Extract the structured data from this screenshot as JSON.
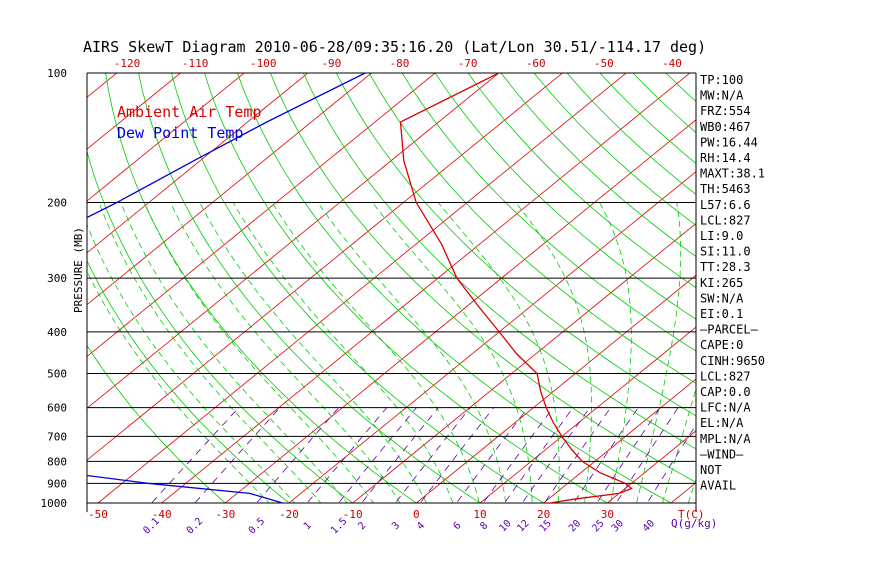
{
  "chart_data": {
    "type": "line",
    "title": "AIRS SkewT Diagram 2010-06-28/09:35:16.20 (Lat/Lon 30.51/-114.17 deg)",
    "ylabel": "PRESSURE (MB)",
    "y_scale": "log",
    "ylim": [
      1000,
      100
    ],
    "y_ticks": [
      100,
      200,
      300,
      400,
      500,
      600,
      700,
      800,
      900,
      1000
    ],
    "bottom_temp_ticks": [
      -50,
      -40,
      -30,
      -20,
      -10,
      0,
      10,
      20,
      30
    ],
    "bottom_temp_label": "T(C)",
    "top_temp_ticks": [
      -120,
      -110,
      -100,
      -90,
      -80,
      -70,
      -60,
      -50,
      -40
    ],
    "mixing_ratio_ticks": [
      "0.1",
      "0.2",
      "0.5",
      "1",
      "1.5",
      "2",
      "3",
      "4",
      "6",
      "8",
      "10",
      "12",
      "15",
      "20",
      "25",
      "30",
      "40"
    ],
    "mixing_ratio_label": "Q(g/kg)",
    "legend": {
      "position": "top-left",
      "entries": [
        "Ambient Air Temp",
        "Dew Point Temp"
      ]
    },
    "colors": {
      "temp": "#dd0000",
      "dew": "#0000dd",
      "isotherm": "#dd0000",
      "dry_adiabat": "#00cc00",
      "moist_adiabat": "#00cc00",
      "mixing_ratio": "#5a00aa",
      "isobar": "#000000"
    },
    "series": [
      {
        "name": "Ambient Air Temp",
        "points": [
          [
            100,
            -70
          ],
          [
            130,
            -76
          ],
          [
            160,
            -68
          ],
          [
            200,
            -58
          ],
          [
            250,
            -46
          ],
          [
            300,
            -37
          ],
          [
            350,
            -28
          ],
          [
            400,
            -20
          ],
          [
            450,
            -13
          ],
          [
            500,
            -6
          ],
          [
            550,
            -2
          ],
          [
            600,
            2
          ],
          [
            650,
            6
          ],
          [
            700,
            10
          ],
          [
            750,
            14
          ],
          [
            800,
            18
          ],
          [
            850,
            23
          ],
          [
            900,
            29
          ],
          [
            925,
            31
          ],
          [
            950,
            30
          ],
          [
            980,
            24
          ],
          [
            1000,
            21
          ]
        ]
      },
      {
        "name": "Dew Point Temp",
        "points": [
          [
            100,
            -91
          ],
          [
            130,
            -97
          ],
          [
            160,
            -101
          ],
          [
            200,
            -105
          ],
          [
            250,
            -110
          ],
          [
            300,
            -114
          ],
          [
            400,
            -114
          ],
          [
            450,
            -113
          ],
          [
            500,
            -107
          ],
          [
            600,
            -96
          ],
          [
            650,
            -88
          ],
          [
            700,
            -79
          ],
          [
            750,
            -70
          ],
          [
            800,
            -66
          ],
          [
            850,
            -61
          ],
          [
            900,
            -46
          ],
          [
            950,
            -28
          ],
          [
            1000,
            -21
          ]
        ]
      }
    ]
  },
  "indices": [
    "TP:100",
    "MW:N/A",
    "FRZ:554",
    "WB0:467",
    "PW:16.44",
    "RH:14.4",
    "MAXT:38.1",
    "TH:5463",
    "L57:6.6",
    "LCL:827",
    "LI:9.0",
    "SI:11.0",
    "TT:28.3",
    "KI:265",
    "SW:N/A",
    "EI:0.1",
    "—PARCEL—",
    "CAPE:0",
    "CINH:9650",
    "LCL:827",
    "CAP:0.0",
    "LFC:N/A",
    "EL:N/A",
    "MPL:N/A",
    "—WIND—",
    "NOT",
    "AVAIL"
  ]
}
